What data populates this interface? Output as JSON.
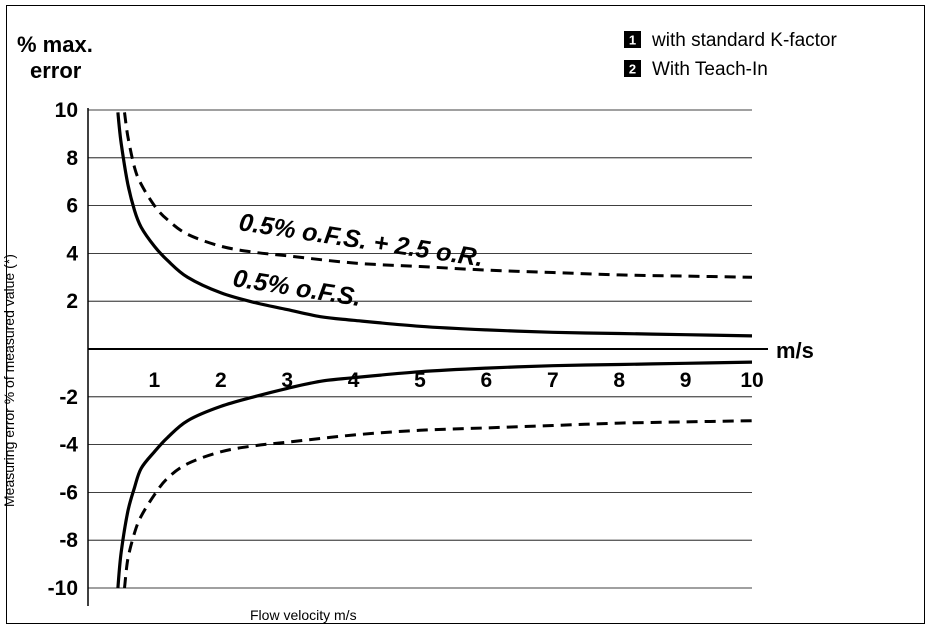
{
  "chart_data": {
    "type": "line",
    "y_unit_label_line1": "% max.",
    "y_unit_label_line2": "error",
    "x_unit_label": "m/s",
    "ylabel": "Measuring error % of measured value (*)",
    "xlabel": "Flow velocity m/s",
    "xlim": [
      0,
      10
    ],
    "ylim": [
      -10,
      10
    ],
    "x_ticks": [
      "1",
      "2",
      "3",
      "4",
      "5",
      "6",
      "7",
      "8",
      "9",
      "10"
    ],
    "y_ticks": [
      "10",
      "8",
      "6",
      "4",
      "2",
      "-2",
      "-4",
      "-6",
      "-8",
      "-10"
    ],
    "grid": "horizontal",
    "legend_position": "top-right",
    "legend": [
      {
        "number": "1",
        "label": "with standard K-factor"
      },
      {
        "number": "2",
        "label": "With Teach-In"
      }
    ],
    "annotations": [
      "0.5% o.F.S. + 2.5 o.R.",
      "0.5% o.F.S."
    ],
    "series": [
      {
        "style": "dashed",
        "x": [
          0.55,
          0.6,
          0.7,
          0.8,
          1.0,
          1.2,
          1.5,
          2.0,
          2.5,
          3.0,
          4.0,
          5.0,
          6.0,
          7.0,
          8.0,
          9.0,
          10.0
        ],
        "y": [
          9.9,
          8.9,
          7.6,
          6.9,
          6.0,
          5.4,
          4.8,
          4.3,
          4.05,
          3.9,
          3.6,
          3.45,
          3.3,
          3.2,
          3.1,
          3.05,
          3.0
        ],
        "y_negative": [
          -10.0,
          -8.8,
          -7.7,
          -7.0,
          -6.1,
          -5.4,
          -4.8,
          -4.3,
          -4.05,
          -3.9,
          -3.6,
          -3.4,
          -3.3,
          -3.2,
          -3.1,
          -3.05,
          -3.0
        ]
      },
      {
        "style": "solid",
        "x": [
          0.45,
          0.5,
          0.6,
          0.7,
          0.8,
          1.0,
          1.2,
          1.5,
          2.0,
          2.5,
          3.0,
          3.5,
          4.0,
          5.0,
          6.0,
          7.0,
          8.0,
          9.0,
          10.0
        ],
        "y": [
          9.9,
          8.6,
          6.9,
          5.8,
          5.1,
          4.3,
          3.7,
          3.0,
          2.35,
          1.95,
          1.65,
          1.35,
          1.2,
          0.95,
          0.8,
          0.7,
          0.65,
          0.6,
          0.55
        ],
        "y_negative": [
          -10.0,
          -8.5,
          -6.8,
          -5.8,
          -5.0,
          -4.3,
          -3.7,
          -3.0,
          -2.4,
          -2.0,
          -1.65,
          -1.35,
          -1.2,
          -0.95,
          -0.8,
          -0.7,
          -0.65,
          -0.6,
          -0.55
        ]
      }
    ]
  }
}
